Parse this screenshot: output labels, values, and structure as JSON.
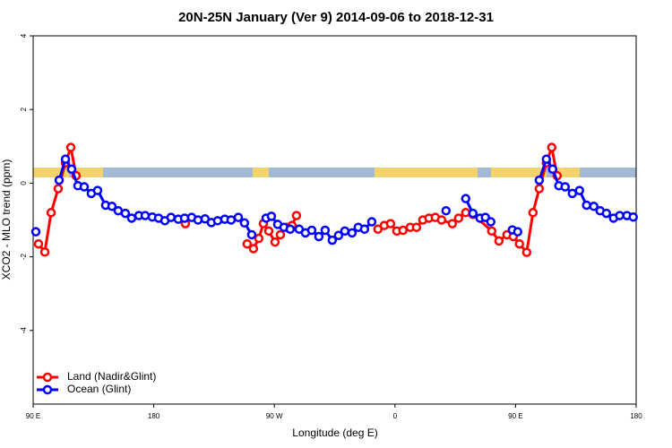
{
  "chart_data": {
    "type": "line",
    "title": "20N-25N January (Ver 9)   2014-09-06 to 2018-12-31",
    "x_label": "Longitude (deg E)",
    "y_label": "XCO2 - MLO trend (ppm)",
    "xlim": [
      90,
      540
    ],
    "ylim": [
      -6,
      4
    ],
    "xticks": [
      {
        "value": 90,
        "label": "90 E"
      },
      180,
      {
        "value": 270,
        "label": "90 W"
      },
      {
        "value": 360,
        "label": "0"
      },
      {
        "value": 450,
        "label": "90 E"
      },
      {
        "value": 540,
        "label": "180"
      }
    ],
    "yticks": [
      -4,
      -2,
      0,
      2,
      4
    ],
    "legend": "bottom-left",
    "series": [
      {
        "name": "Land (Nadir&Glint)",
        "color": "#ff0000",
        "x": [
          94,
          98.7,
          103.4,
          108.7,
          114.1,
          118.1,
          122.1,
          null,
          203.6,
          null,
          249.7,
          254.4,
          258.4,
          261.8,
          265.8,
          270.5,
          274.5,
          279.2,
          283.2,
          286.5,
          null,
          347.3,
          352,
          356.7,
          361.4,
          366,
          371.4,
          376.1,
          380.8,
          385.4,
          390.1,
          394.8,
          402.8,
          407.5,
          412.8,
          418.2,
          432.2,
          437.6,
          443.6,
          448.3,
          452.9,
          458.3,
          463,
          467.7,
          473,
          477,
          481
        ],
        "values": [
          -1.65,
          -1.87,
          -0.8,
          -0.15,
          0.55,
          0.97,
          0.2,
          null,
          -1.1,
          null,
          -1.65,
          -1.78,
          -1.5,
          -1.1,
          -1.3,
          -1.6,
          -1.4,
          -1.2,
          -1.15,
          -0.88,
          null,
          -1.25,
          -1.15,
          -1.1,
          -1.3,
          -1.28,
          -1.2,
          -1.2,
          -1.0,
          -0.95,
          -0.93,
          -1.0,
          -1.1,
          -0.95,
          -0.8,
          -0.85,
          -1.3,
          -1.57,
          -1.4,
          -1.45,
          -1.65,
          -1.88,
          -0.8,
          -0.15,
          0.55,
          0.97,
          0.2
        ]
      },
      {
        "name": "Ocean (Glint)",
        "color": "#0000ff",
        "x": [
          92,
          null,
          109.4,
          114.1,
          118.7,
          123.4,
          128.1,
          133.4,
          138.1,
          144.1,
          148.8,
          153.5,
          158.8,
          163.5,
          168.9,
          173.6,
          178.9,
          183.6,
          188.3,
          192.9,
          198.3,
          203,
          208.3,
          213,
          218.3,
          223,
          227.7,
          233,
          237.7,
          243.1,
          247.7,
          253.1,
          null,
          263.8,
          267.8,
          272.5,
          277.2,
          281.8,
          288.5,
          293.2,
          297.9,
          303.2,
          307.9,
          313.2,
          317.9,
          322.6,
          328,
          332.6,
          337.3,
          342.7,
          null,
          398.1,
          null,
          412.8,
          418.2,
          423.5,
          427.5,
          431.5,
          null,
          447.6,
          451.6,
          null,
          467.7,
          473,
          477.7,
          482.3,
          487,
          492.4,
          497.7,
          503,
          508.4,
          513.1,
          517.8,
          523.1,
          527.7,
          533.1,
          537.8
        ],
        "values": [
          -1.32,
          null,
          0.08,
          0.65,
          0.38,
          -0.07,
          -0.1,
          -0.28,
          -0.2,
          -0.6,
          -0.63,
          -0.75,
          -0.82,
          -0.95,
          -0.88,
          -0.88,
          -0.92,
          -0.95,
          -1.02,
          -0.93,
          -0.98,
          -0.95,
          -0.93,
          -1.0,
          -0.97,
          -1.07,
          -1.02,
          -0.98,
          -1.0,
          -0.93,
          -1.08,
          -1.4,
          null,
          -0.95,
          -0.9,
          -1.12,
          -1.2,
          -1.25,
          -1.25,
          -1.35,
          -1.28,
          -1.45,
          -1.28,
          -1.55,
          -1.42,
          -1.3,
          -1.35,
          -1.2,
          -1.25,
          -1.05,
          null,
          -0.75,
          null,
          -0.42,
          -0.82,
          -0.95,
          -0.93,
          -1.05,
          null,
          -1.27,
          -1.32,
          null,
          0.08,
          0.65,
          0.38,
          -0.07,
          -0.1,
          -0.28,
          -0.2,
          -0.6,
          -0.63,
          -0.75,
          -0.82,
          -0.95,
          -0.88,
          -0.88,
          -0.92
        ]
      }
    ]
  }
}
